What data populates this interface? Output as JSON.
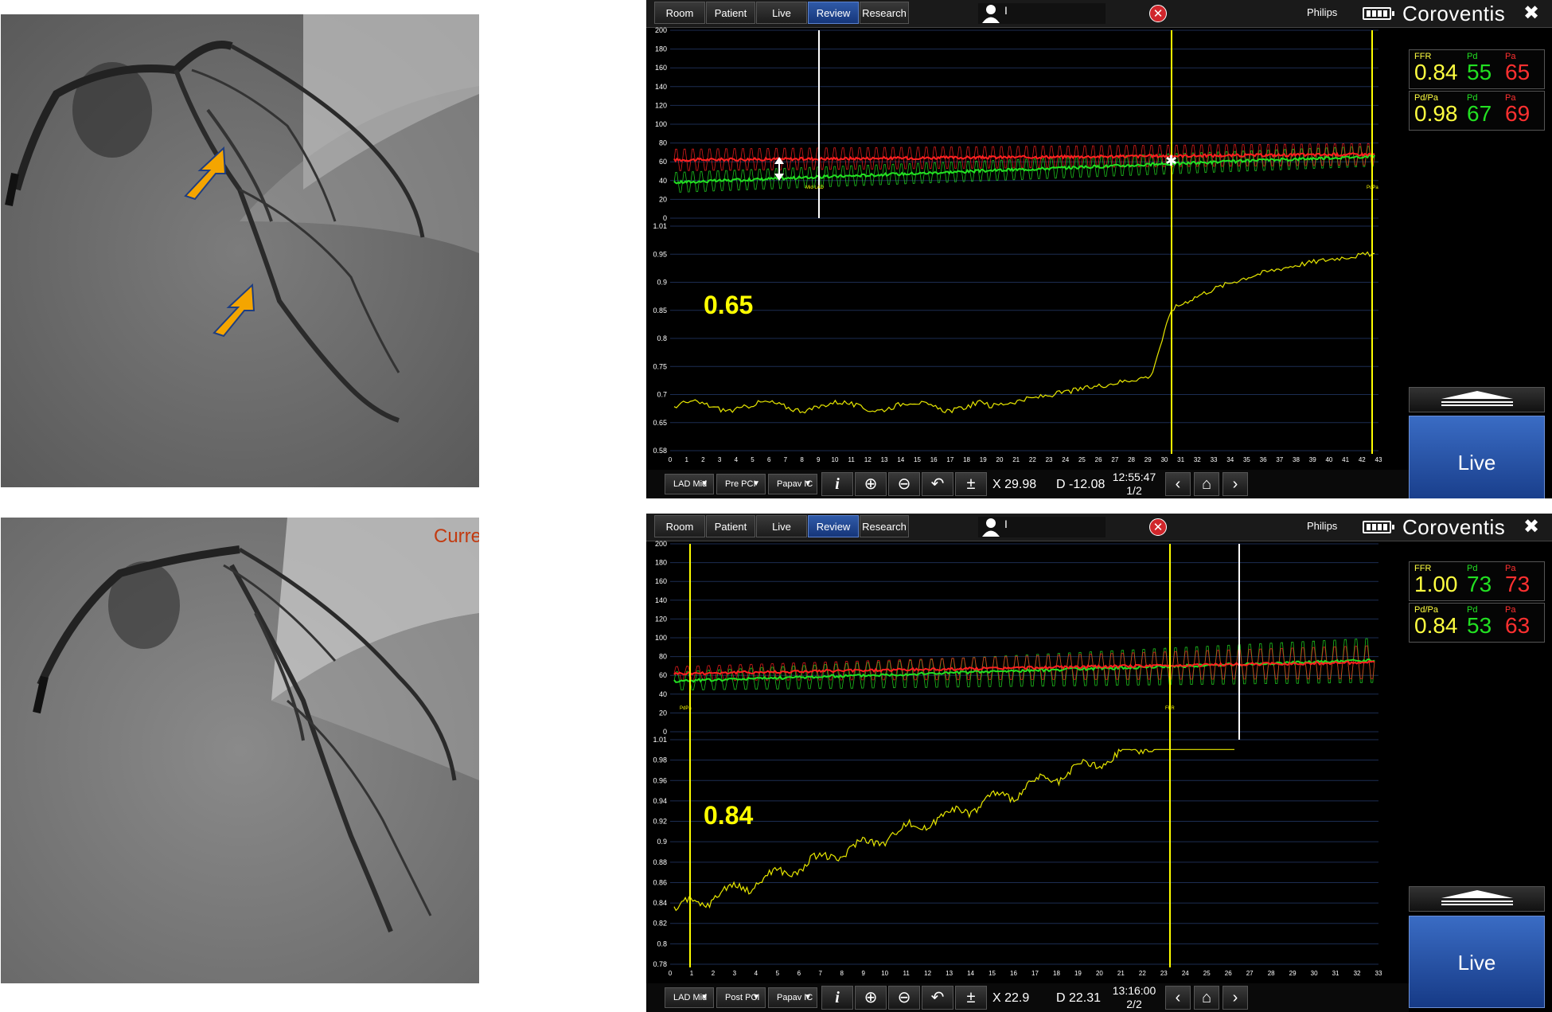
{
  "angiograms": {
    "top_label": "",
    "bottom_overlay_text": "Curre"
  },
  "panels": [
    {
      "id": "pre",
      "tabs": [
        "Room",
        "Patient",
        "Live",
        "Review",
        "Research"
      ],
      "active_tab": "Review",
      "user_label": "I",
      "brand_left": "Philips",
      "brand_right": "Coroventis",
      "values": {
        "ffr_label": "FFR",
        "pd_label": "Pd",
        "pa_label": "Pa",
        "ffr": "0.84",
        "pd": "55",
        "pa": "65",
        "pdpa_label": "Pd/Pa",
        "pdpa": "0.98",
        "pd2": "67",
        "pa2": "69"
      },
      "live_label": "Live",
      "dropdowns": [
        "LAD Mid",
        "Pre PCI",
        "Papav IC"
      ],
      "x_readout": "X 29.98",
      "d_readout": "D -12.08",
      "time": "12:55:47",
      "page": "1/2",
      "big_value": "0.65",
      "markers": [
        "Mid LAD",
        "PdPa"
      ],
      "pressure_y_ticks": [
        "200",
        "180",
        "160",
        "140",
        "120",
        "100",
        "80",
        "60",
        "40",
        "20",
        "0"
      ],
      "ratio_y_ticks": [
        "1.01",
        "0.95",
        "0.9",
        "0.85",
        "0.8",
        "0.75",
        "0.7",
        "0.65",
        "0.58"
      ],
      "x_ticks_max": 43,
      "colors": {
        "pa": "#ff2020",
        "pd": "#22e022",
        "ratio": "#e8e800",
        "accent": "#ffff00"
      }
    },
    {
      "id": "post",
      "tabs": [
        "Room",
        "Patient",
        "Live",
        "Review",
        "Research"
      ],
      "active_tab": "Review",
      "user_label": "I",
      "brand_left": "Philips",
      "brand_right": "Coroventis",
      "values": {
        "ffr_label": "FFR",
        "pd_label": "Pd",
        "pa_label": "Pa",
        "ffr": "1.00",
        "pd": "73",
        "pa": "73",
        "pdpa_label": "Pd/Pa",
        "pdpa": "0.84",
        "pd2": "53",
        "pa2": "63"
      },
      "live_label": "Live",
      "dropdowns": [
        "LAD Mid",
        "Post PCI",
        "Papav IC"
      ],
      "x_readout": "X 22.9",
      "d_readout": "D 22.31",
      "time": "13:16:00",
      "page": "2/2",
      "big_value": "0.84",
      "markers": [
        "PdPa",
        "FFR"
      ],
      "pressure_y_ticks": [
        "200",
        "180",
        "160",
        "140",
        "120",
        "100",
        "80",
        "60",
        "40",
        "20",
        "0"
      ],
      "ratio_y_ticks": [
        "1.01",
        "0.98",
        "0.96",
        "0.94",
        "0.92",
        "0.9",
        "0.88",
        "0.86",
        "0.84",
        "0.82",
        "0.8",
        "0.78"
      ],
      "x_ticks_max": 33,
      "colors": {
        "pa": "#ff2020",
        "pd": "#22e022",
        "ratio": "#e8e800",
        "accent": "#ffff00"
      }
    }
  ]
}
